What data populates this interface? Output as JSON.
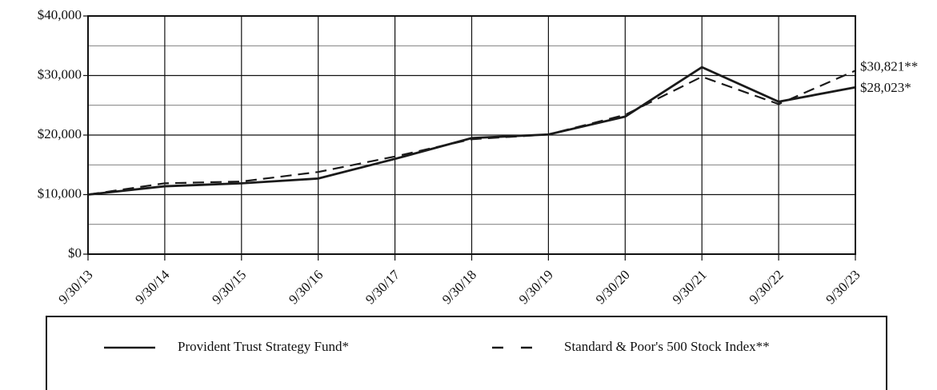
{
  "chart_data": {
    "type": "line",
    "categories": [
      "9/30/13",
      "9/30/14",
      "9/30/15",
      "9/30/16",
      "9/30/17",
      "9/30/18",
      "9/30/19",
      "9/30/20",
      "9/30/21",
      "9/30/22",
      "9/30/23"
    ],
    "series": [
      {
        "name": "Provident Trust Strategy Fund*",
        "color": "#1a1a1a",
        "dash": "solid",
        "values": [
          10000,
          11400,
          11900,
          12700,
          16000,
          19500,
          20100,
          23100,
          31400,
          25600,
          28023
        ],
        "end_label": "$28,023*"
      },
      {
        "name": "Standard & Poor's 500 Stock Index**",
        "color": "#1a1a1a",
        "dash": "dashed",
        "values": [
          10000,
          11900,
          12200,
          13800,
          16400,
          19300,
          20100,
          23400,
          29800,
          25200,
          30821
        ],
        "end_label": "$30,821**"
      }
    ],
    "ylim": [
      0,
      40000
    ],
    "yticks": [
      {
        "value": 0,
        "label": "$0"
      },
      {
        "value": 10000,
        "label": "$10,000"
      },
      {
        "value": 20000,
        "label": "$20,000"
      },
      {
        "value": 30000,
        "label": "$30,000"
      },
      {
        "value": 40000,
        "label": "$40,000"
      }
    ],
    "minor_yticks": [
      5000,
      15000,
      25000,
      35000
    ],
    "grid": true
  }
}
